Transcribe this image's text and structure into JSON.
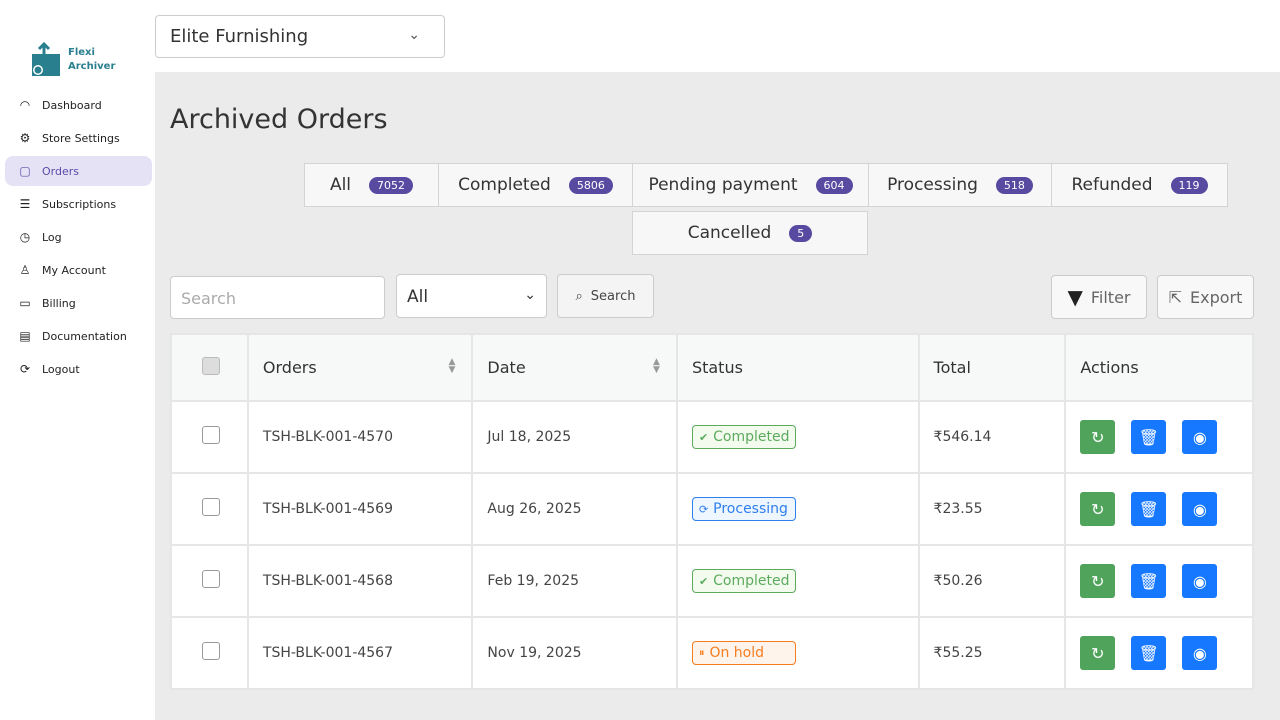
{
  "app": {
    "logo_line1": "Flexi",
    "logo_line2": "Archiver",
    "store": "Elite Furnishing"
  },
  "sidebar": {
    "items": [
      {
        "label": "Dashboard",
        "icon": "gauge-icon"
      },
      {
        "label": "Store Settings",
        "icon": "gear-icon"
      },
      {
        "label": "Orders",
        "icon": "bag-icon",
        "active": true
      },
      {
        "label": "Subscriptions",
        "icon": "list-icon"
      },
      {
        "label": "Log",
        "icon": "clock-icon"
      },
      {
        "label": "My Account",
        "icon": "user-icon"
      },
      {
        "label": "Billing",
        "icon": "card-icon"
      },
      {
        "label": "Documentation",
        "icon": "document-icon"
      },
      {
        "label": "Logout",
        "icon": "logout-icon"
      }
    ]
  },
  "page": {
    "title": "Archived Orders"
  },
  "tabs": [
    {
      "label": "All",
      "count": "7052"
    },
    {
      "label": "Completed",
      "count": "5806"
    },
    {
      "label": "Pending payment",
      "count": "604"
    },
    {
      "label": "Processing",
      "count": "518"
    },
    {
      "label": "Refunded",
      "count": "119"
    },
    {
      "label": "Cancelled",
      "count": "5"
    }
  ],
  "toolbar": {
    "search_placeholder": "Search",
    "select_value": "All",
    "search_button": "Search",
    "filter": "Filter",
    "export": "Export"
  },
  "table": {
    "headers": [
      "Orders",
      "Date",
      "Status",
      "Total",
      "Actions"
    ],
    "rows": [
      {
        "order": "TSH-BLK-001-4570",
        "date": "Jul  18, 2025",
        "status": "Completed",
        "total": "₹546.14"
      },
      {
        "order": "TSH-BLK-001-4569",
        "date": "Aug 26, 2025",
        "status": "Processing",
        "total": "₹23.55"
      },
      {
        "order": "TSH-BLK-001-4568",
        "date": "Feb 19, 2025",
        "status": "Completed",
        "total": "₹50.26"
      },
      {
        "order": "TSH-BLK-001-4567",
        "date": "Nov 19, 2025",
        "status": "On hold",
        "total": "₹55.25"
      }
    ]
  },
  "colors": {
    "accent": "#574aa0",
    "restore": "#4fa35a",
    "action_blue": "#1677ff",
    "completed": "#5cab5c",
    "processing": "#2f80ed",
    "on_hold": "#f57c1f"
  }
}
